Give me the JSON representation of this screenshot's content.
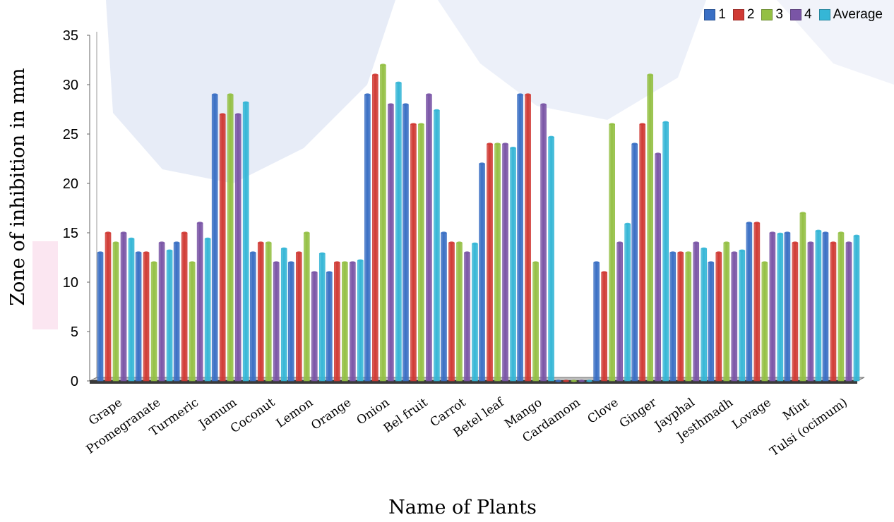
{
  "chart_data": {
    "type": "bar",
    "xlabel": "Name of Plants",
    "ylabel": "Zone of inhibition in mm",
    "ylim": [
      0,
      35
    ],
    "yticks": [
      0,
      5,
      10,
      15,
      20,
      25,
      30,
      35
    ],
    "grid": false,
    "legend_position": "top-right",
    "categories": [
      "Grape",
      "Promegranate",
      "Turmeric",
      "Jamum",
      "Coconut",
      "Lemon",
      "Orange",
      "Onion",
      "Bel fruit",
      "Carrot",
      "Betel leaf",
      "Mango",
      "Cardamom",
      "Clove",
      "Ginger",
      "Jayphal",
      "Jesthmadh",
      "Lovage",
      "Mint",
      "Tulsi (ocimum)"
    ],
    "series": [
      {
        "name": "1",
        "color": "#3a6fc4",
        "values": [
          13,
          13,
          14,
          29,
          13,
          12,
          11,
          29,
          28,
          15,
          22,
          29,
          0,
          12,
          24,
          13,
          12,
          16,
          15,
          15
        ]
      },
      {
        "name": "2",
        "color": "#d03a34",
        "values": [
          15,
          13,
          15,
          27,
          14,
          13,
          12,
          31,
          26,
          14,
          24,
          29,
          0,
          11,
          26,
          13,
          13,
          16,
          14,
          14
        ]
      },
      {
        "name": "3",
        "color": "#94c044",
        "values": [
          14,
          12,
          12,
          29,
          14,
          15,
          12,
          32,
          26,
          14,
          24,
          12,
          0,
          26,
          31,
          13,
          14,
          12,
          17,
          15
        ]
      },
      {
        "name": "4",
        "color": "#7a55a6",
        "values": [
          15,
          14,
          16,
          27,
          12,
          11,
          12,
          28,
          29,
          13,
          24,
          28,
          0,
          14,
          23,
          14,
          13,
          15,
          14,
          14
        ]
      },
      {
        "name": "Average",
        "color": "#35b6d6",
        "values": [
          14.4,
          13.2,
          14.4,
          28.2,
          13.4,
          12.9,
          12.2,
          30.2,
          27.4,
          13.9,
          23.6,
          24.7,
          0,
          15.9,
          26.2,
          13.4,
          13.2,
          14.9,
          15.2,
          14.7
        ]
      }
    ]
  }
}
